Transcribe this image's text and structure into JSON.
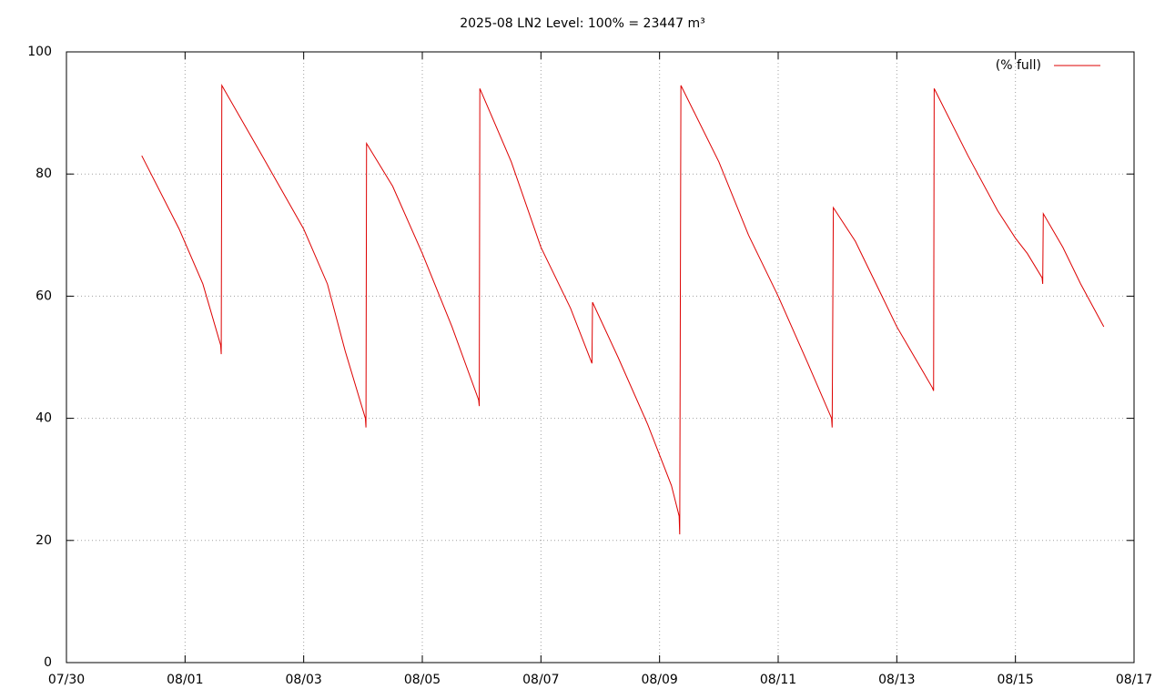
{
  "chart_data": {
    "type": "line",
    "title": "2025-08 LN2 Level: 100% = 23447 m³",
    "x": [
      1.27,
      1.9,
      2.3,
      2.6,
      2.61,
      2.62,
      3.3,
      4.0,
      4.4,
      4.7,
      5.04,
      5.05,
      5.06,
      5.5,
      6.0,
      6.5,
      6.95,
      6.96,
      6.97,
      7.5,
      8.0,
      8.5,
      8.86,
      8.87,
      9.3,
      9.8,
      10.2,
      10.33,
      10.34,
      10.36,
      11.0,
      11.5,
      12.0,
      12.5,
      12.9,
      12.91,
      12.93,
      13.3,
      13.6,
      14.0,
      14.3,
      14.6,
      14.62,
      14.63,
      15.2,
      15.7,
      16.0,
      16.2,
      16.45,
      16.46,
      16.47,
      16.8,
      17.1,
      17.49
    ],
    "series": [
      {
        "name": "(% full)",
        "color": "#dd0000",
        "values": [
          83,
          71,
          62,
          52,
          50.5,
          94.5,
          83,
          71,
          62,
          51,
          40,
          38.5,
          85,
          78,
          67,
          55,
          43,
          42,
          94,
          82,
          68,
          58,
          49,
          59,
          50,
          39,
          29,
          24,
          21,
          94.5,
          82,
          70,
          60,
          49,
          40,
          38.5,
          74.5,
          69,
          63,
          55,
          50,
          45,
          44.5,
          94,
          83,
          74,
          69.5,
          67,
          63,
          62,
          73.5,
          68,
          62,
          55
        ]
      }
    ],
    "xlim": [
      0,
      18
    ],
    "xticks": [
      {
        "value": 0,
        "label": "07/30"
      },
      {
        "value": 2,
        "label": "08/01"
      },
      {
        "value": 4,
        "label": "08/03"
      },
      {
        "value": 6,
        "label": "08/05"
      },
      {
        "value": 8,
        "label": "08/07"
      },
      {
        "value": 10,
        "label": "08/09"
      },
      {
        "value": 12,
        "label": "08/11"
      },
      {
        "value": 14,
        "label": "08/13"
      },
      {
        "value": 16,
        "label": "08/15"
      },
      {
        "value": 18,
        "label": "08/17"
      }
    ],
    "ylim": [
      0,
      100
    ],
    "yticks": [
      0,
      20,
      40,
      60,
      80,
      100
    ],
    "grid": true,
    "legend": "top right"
  }
}
